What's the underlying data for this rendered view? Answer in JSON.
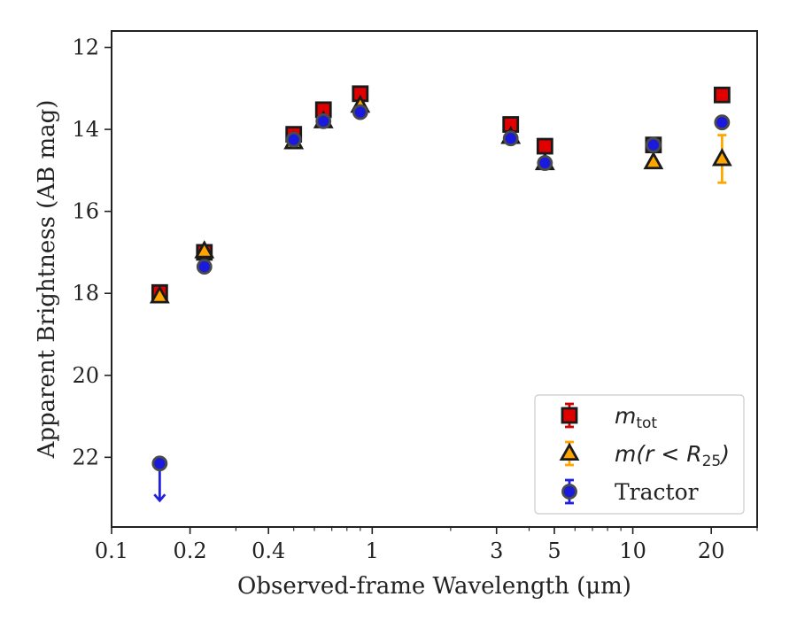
{
  "chart_data": {
    "type": "scatter",
    "title": "",
    "xlabel": "Observed-frame Wavelength (μm)",
    "ylabel": "Apparent Brightness (AB mag)",
    "xscale": "log",
    "xlim": [
      0.1,
      30
    ],
    "ylim": [
      23.7,
      11.6
    ],
    "y_inverted": true,
    "xticks": [
      {
        "value": 0.1,
        "label": "0.1"
      },
      {
        "value": 0.2,
        "label": "0.2"
      },
      {
        "value": 0.4,
        "label": "0.4"
      },
      {
        "value": 1,
        "label": "1"
      },
      {
        "value": 3,
        "label": "3"
      },
      {
        "value": 5,
        "label": "5"
      },
      {
        "value": 10,
        "label": "10"
      },
      {
        "value": 20,
        "label": "20"
      }
    ],
    "yticks": [
      {
        "value": 12,
        "label": "12"
      },
      {
        "value": 14,
        "label": "14"
      },
      {
        "value": 16,
        "label": "16"
      },
      {
        "value": 18,
        "label": "18"
      },
      {
        "value": 20,
        "label": "20"
      },
      {
        "value": 22,
        "label": "22"
      }
    ],
    "grid": false,
    "legend_position": "lower-right",
    "series": [
      {
        "key": "mtot",
        "legend": {
          "main": "m",
          "sub": "tot",
          "rest": ""
        },
        "marker": "square",
        "color": "#e00000",
        "edge": "#1a1a1a",
        "errcolor": "#d00000",
        "points": [
          {
            "x": 0.153,
            "y": 17.98,
            "err": 0.05
          },
          {
            "x": 0.227,
            "y": 17.0,
            "err": 0.05
          },
          {
            "x": 0.5,
            "y": 14.12,
            "err": 0.03
          },
          {
            "x": 0.65,
            "y": 13.52,
            "err": 0.03
          },
          {
            "x": 0.9,
            "y": 13.13,
            "err": 0.03
          },
          {
            "x": 3.4,
            "y": 13.88,
            "err": 0.03
          },
          {
            "x": 4.6,
            "y": 14.41,
            "err": 0.03
          },
          {
            "x": 12.0,
            "y": 14.38,
            "err": 0.03
          },
          {
            "x": 22.0,
            "y": 13.16,
            "err": 0.05
          }
        ]
      },
      {
        "key": "mr25",
        "legend": {
          "main": "m",
          "sub": "25",
          "rest": "(r < R"
        },
        "marker": "triangle",
        "color": "#ffa500",
        "edge": "#1a1a1a",
        "errcolor": "#ffa500",
        "points": [
          {
            "x": 0.153,
            "y": 18.07,
            "err": 0.05
          },
          {
            "x": 0.227,
            "y": 16.97,
            "err": 0.05
          },
          {
            "x": 0.5,
            "y": 14.31,
            "err": 0.03
          },
          {
            "x": 0.65,
            "y": 13.8,
            "err": 0.03
          },
          {
            "x": 0.9,
            "y": 13.42,
            "err": 0.03
          },
          {
            "x": 3.4,
            "y": 14.18,
            "err": 0.03
          },
          {
            "x": 4.6,
            "y": 14.82,
            "err": 0.03
          },
          {
            "x": 12.0,
            "y": 14.8,
            "err": 0.05
          },
          {
            "x": 22.0,
            "y": 14.72,
            "err": 0.58
          }
        ]
      },
      {
        "key": "tractor",
        "legend": {
          "main": "",
          "sub": "",
          "rest": "Tractor"
        },
        "marker": "circle",
        "color": "#1a1adc",
        "edge": "#4a4a4a",
        "errcolor": "#2020e0",
        "points": [
          {
            "x": 0.153,
            "y": 22.15,
            "err": 0,
            "upper_limit": true
          },
          {
            "x": 0.227,
            "y": 17.35,
            "err": 0.03
          },
          {
            "x": 0.5,
            "y": 14.25,
            "err": 0.03
          },
          {
            "x": 0.65,
            "y": 13.8,
            "err": 0.03
          },
          {
            "x": 0.9,
            "y": 13.58,
            "err": 0.03
          },
          {
            "x": 3.4,
            "y": 14.22,
            "err": 0.03
          },
          {
            "x": 4.6,
            "y": 14.82,
            "err": 0.03
          },
          {
            "x": 12.0,
            "y": 14.38,
            "err": 0.03
          },
          {
            "x": 22.0,
            "y": 13.83,
            "err": 0.05
          }
        ]
      }
    ]
  }
}
